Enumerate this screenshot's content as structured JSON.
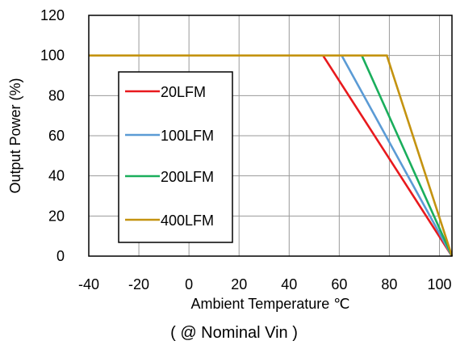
{
  "chart_data": {
    "type": "line",
    "xlabel": "Ambient Temperature  ℃",
    "ylabel": "Output Power  (%)",
    "caption": "( @ Nominal Vin )",
    "xlim": [
      -40,
      105
    ],
    "ylim": [
      0,
      120
    ],
    "xticks": [
      -40,
      -20,
      0,
      20,
      40,
      60,
      80,
      100
    ],
    "yticks": [
      0,
      20,
      40,
      60,
      80,
      100,
      120
    ],
    "grid": true,
    "legend_position": "left",
    "series": [
      {
        "name": "20LFM",
        "color": "#e8191d",
        "points": [
          [
            53.5,
            100
          ],
          [
            105,
            0
          ]
        ]
      },
      {
        "name": "100LFM",
        "color": "#5b9bd5",
        "points": [
          [
            61,
            100
          ],
          [
            105,
            0
          ]
        ]
      },
      {
        "name": "200LFM",
        "color": "#1aae5c",
        "points": [
          [
            69,
            100
          ],
          [
            105,
            0
          ]
        ]
      },
      {
        "name": "400LFM",
        "color": "#c49310",
        "points": [
          [
            -40,
            100
          ],
          [
            79,
            100
          ],
          [
            105,
            0
          ]
        ]
      }
    ]
  }
}
